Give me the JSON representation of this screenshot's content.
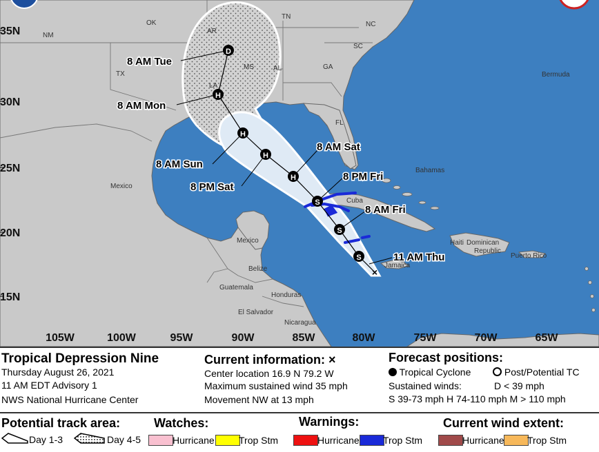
{
  "map": {
    "lat_labels": [
      "35N",
      "30N",
      "25N",
      "20N",
      "15N"
    ],
    "lon_labels": [
      "105W",
      "100W",
      "95W",
      "90W",
      "85W",
      "80W",
      "75W",
      "70W",
      "65W"
    ],
    "state_labels": [
      "OK",
      "AR",
      "TN",
      "NC",
      "SC",
      "GA",
      "AL",
      "MS",
      "LA",
      "TX",
      "FL",
      "NM"
    ],
    "place_labels": {
      "mexico_north": "Mexico",
      "mexico_south": "Mexico",
      "bermuda": "Bermuda",
      "bahamas": "Bahamas",
      "cuba": "Cuba",
      "haiti": "Haiti",
      "dominican": "Dominican",
      "republic": "Republic",
      "puerto_rico": "Puerto Rico",
      "jamaica": "Jamaica",
      "belize": "Belize",
      "guatemala": "Guatemala",
      "honduras": "Honduras",
      "el_salvador": "El Salvador",
      "nicaragua": "Nicaragua"
    },
    "forecast_points": [
      {
        "label": "11 AM Thu",
        "symbol": "S"
      },
      {
        "label": "8 AM Fri",
        "symbol": "S"
      },
      {
        "label": "8 PM Fri",
        "symbol": "S"
      },
      {
        "label": "8 AM Sat",
        "symbol": "H"
      },
      {
        "label": "8 PM Sat",
        "symbol": "H"
      },
      {
        "label": "8 AM Sun",
        "symbol": "H"
      },
      {
        "label": "8 AM Mon",
        "symbol": "H"
      },
      {
        "label": "8 AM Tue",
        "symbol": "D"
      }
    ],
    "colors": {
      "ocean": "#3d7fc0",
      "land": "#c9c9c9",
      "cone": "#dfeaf5",
      "trop_storm_warning": "#1a2ad8"
    }
  },
  "info": {
    "title": "Tropical Depression Nine",
    "date": "Thursday August 26, 2021",
    "advisory": "11 AM EDT Advisory 1",
    "center": "NWS National Hurricane Center"
  },
  "current": {
    "heading": "Current information: ×",
    "location": "Center location 16.9 N 79.2 W",
    "wind": "Maximum sustained wind 35 mph",
    "movement": "Movement NW at 13 mph"
  },
  "forecast": {
    "heading": "Forecast positions:",
    "tropical_cyclone": "Tropical Cyclone",
    "post_potential": "Post/Potential TC",
    "sustained": "Sustained winds:",
    "d_range": "D < 39 mph",
    "ranges": "S 39-73 mph  H 74-110 mph  M > 110 mph"
  },
  "legend": {
    "track_heading": "Potential track area:",
    "day13": "Day 1-3",
    "day45": "Day 4-5",
    "watches_heading": "Watches:",
    "watch_hurricane": "Hurricane",
    "watch_tropstm": "Trop Stm",
    "warnings_heading": "Warnings:",
    "warn_hurricane": "Hurricane",
    "warn_tropstm": "Trop Stm",
    "wind_heading": "Current wind extent:",
    "wind_hurricane": "Hurricane",
    "wind_tropstm": "Trop Stm",
    "colors": {
      "watch_hurricane": "#f9c0d0",
      "watch_tropstm": "#ffff00",
      "warn_hurricane": "#ee1111",
      "warn_tropstm": "#1a2ad8",
      "wind_hurricane": "#a04a4a",
      "wind_tropstm": "#f7b85a"
    }
  }
}
